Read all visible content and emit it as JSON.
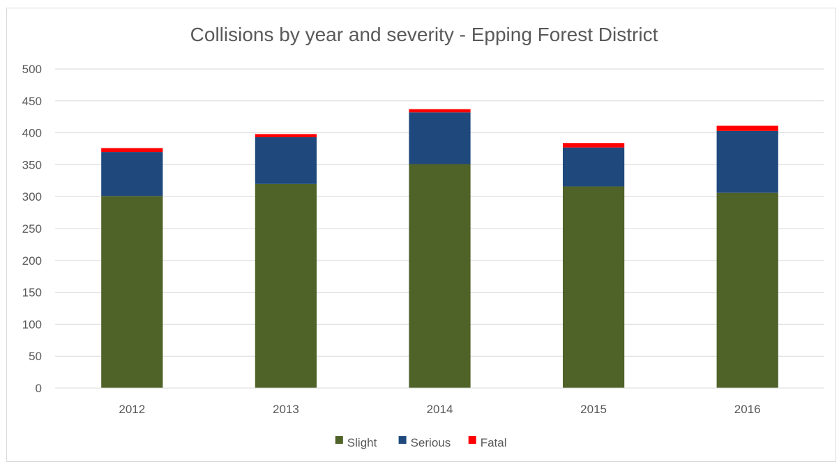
{
  "chart_data": {
    "type": "bar",
    "stacked": true,
    "title": "Collisions by year and severity - Epping Forest District",
    "xlabel": "",
    "ylabel": "",
    "categories": [
      "2012",
      "2013",
      "2014",
      "2015",
      "2016"
    ],
    "series": [
      {
        "name": "Slight",
        "color": "#4f6228",
        "values": [
          301,
          320,
          351,
          316,
          306
        ]
      },
      {
        "name": "Serious",
        "color": "#1f497d",
        "values": [
          69,
          73,
          81,
          61,
          97
        ]
      },
      {
        "name": "Fatal",
        "color": "#ff0000",
        "values": [
          6,
          5,
          5,
          7,
          8
        ]
      }
    ],
    "ylim": [
      0,
      500
    ],
    "yticks": [
      "0",
      "50",
      "100",
      "150",
      "200",
      "250",
      "300",
      "350",
      "400",
      "450",
      "500"
    ],
    "grid": true,
    "legend_position": "bottom"
  }
}
